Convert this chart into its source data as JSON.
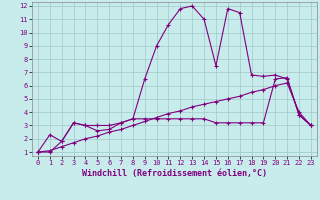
{
  "xlabel": "Windchill (Refroidissement éolien,°C)",
  "bg_color": "#c8ecec",
  "grid_color": "#a0c8c8",
  "line_color": "#800080",
  "xlim": [
    -0.5,
    23.5
  ],
  "ylim": [
    0.7,
    12.3
  ],
  "xticks": [
    0,
    1,
    2,
    3,
    4,
    5,
    6,
    7,
    8,
    9,
    10,
    11,
    12,
    13,
    14,
    15,
    16,
    17,
    18,
    19,
    20,
    21,
    22,
    23
  ],
  "yticks": [
    1,
    2,
    3,
    4,
    5,
    6,
    7,
    8,
    9,
    10,
    11,
    12
  ],
  "line1_x": [
    0,
    1,
    2,
    3,
    4,
    5,
    6,
    7,
    8,
    9,
    10,
    11,
    12,
    13,
    14,
    15,
    16,
    17,
    18,
    19,
    20,
    21,
    22,
    23
  ],
  "line1_y": [
    1.0,
    2.3,
    1.8,
    3.2,
    3.0,
    2.6,
    2.7,
    3.2,
    3.5,
    6.5,
    9.0,
    10.6,
    11.8,
    12.0,
    11.0,
    7.5,
    11.8,
    11.5,
    6.8,
    6.7,
    6.8,
    6.5,
    3.8,
    3.0
  ],
  "line2_x": [
    0,
    1,
    2,
    3,
    4,
    5,
    6,
    7,
    8,
    9,
    10,
    11,
    12,
    13,
    14,
    15,
    16,
    17,
    18,
    19,
    20,
    21,
    22,
    23
  ],
  "line2_y": [
    1.0,
    1.0,
    1.8,
    3.2,
    3.0,
    3.0,
    3.0,
    3.2,
    3.5,
    3.5,
    3.5,
    3.5,
    3.5,
    3.5,
    3.5,
    3.2,
    3.2,
    3.2,
    3.2,
    3.2,
    6.5,
    6.6,
    3.8,
    3.0
  ],
  "line3_x": [
    0,
    1,
    2,
    3,
    4,
    5,
    6,
    7,
    8,
    9,
    10,
    11,
    12,
    13,
    14,
    15,
    16,
    17,
    18,
    19,
    20,
    21,
    22,
    23
  ],
  "line3_y": [
    1.0,
    1.1,
    1.4,
    1.7,
    2.0,
    2.2,
    2.5,
    2.7,
    3.0,
    3.3,
    3.6,
    3.9,
    4.1,
    4.4,
    4.6,
    4.8,
    5.0,
    5.2,
    5.5,
    5.7,
    6.0,
    6.2,
    4.0,
    3.0
  ],
  "marker": "+",
  "markersize": 3,
  "linewidth": 0.8,
  "tick_fontsize": 5.0,
  "label_fontsize": 6.0
}
